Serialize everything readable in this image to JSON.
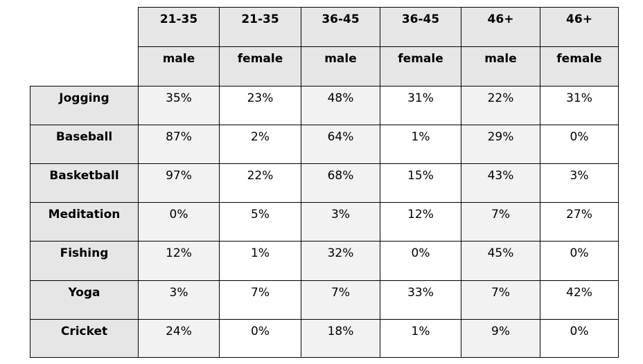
{
  "chart_data": {
    "type": "table",
    "column_groups": [
      "21-35",
      "21-35",
      "36-45",
      "36-45",
      "46+",
      "46+"
    ],
    "column_subheaders": [
      "male",
      "female",
      "male",
      "female",
      "male",
      "female"
    ],
    "rows": [
      {
        "label": "Jogging",
        "values": [
          "35%",
          "23%",
          "48%",
          "31%",
          "22%",
          "31%"
        ]
      },
      {
        "label": "Baseball",
        "values": [
          "87%",
          "2%",
          "64%",
          "1%",
          "29%",
          "0%"
        ]
      },
      {
        "label": "Basketball",
        "values": [
          "97%",
          "22%",
          "68%",
          "15%",
          "43%",
          "3%"
        ]
      },
      {
        "label": "Meditation",
        "values": [
          "0%",
          "5%",
          "3%",
          "12%",
          "7%",
          "27%"
        ]
      },
      {
        "label": "Fishing",
        "values": [
          "12%",
          "1%",
          "32%",
          "0%",
          "45%",
          "0%"
        ]
      },
      {
        "label": "Yoga",
        "values": [
          "3%",
          "7%",
          "7%",
          "33%",
          "7%",
          "42%"
        ]
      },
      {
        "label": "Cricket",
        "values": [
          "24%",
          "0%",
          "18%",
          "1%",
          "9%",
          "0%"
        ]
      }
    ]
  }
}
